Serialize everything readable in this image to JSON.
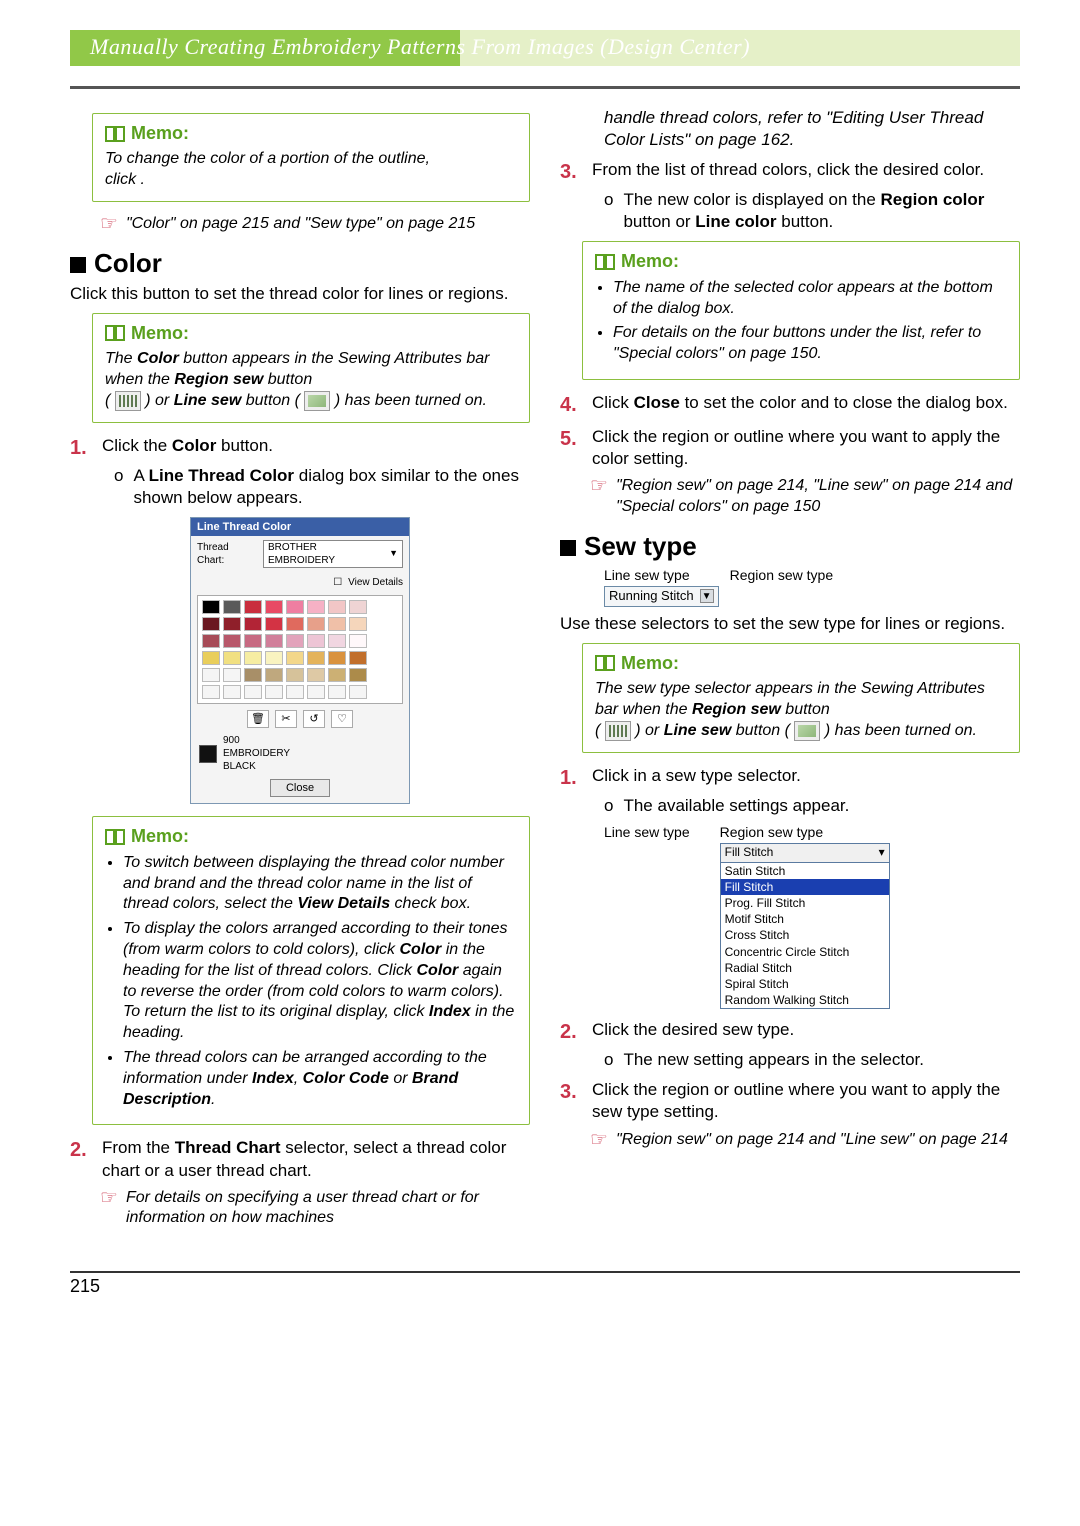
{
  "header": {
    "title": "Manually Creating Embroidery Patterns From Images (Design Center)"
  },
  "memo_label": "Memo:",
  "left": {
    "memo1": {
      "line1": "To change the color of a portion of the outline,",
      "line2": "click          ."
    },
    "xref1": "\"Color\" on page 215 and \"Sew type\" on page 215",
    "section_color": "Color",
    "color_intro": "Click this button to set the thread color for lines or regions.",
    "memo2_a": "The ",
    "memo2_b": "Color",
    "memo2_c": " button appears in the Sewing Attributes bar when the ",
    "memo2_d": "Region sew",
    "memo2_e": " button",
    "memo2_f": "(",
    "memo2_g": ") or ",
    "memo2_h": "Line sew",
    "memo2_i": " button (",
    "memo2_j": ") has been turned on.",
    "step1_a": "Click the ",
    "step1_b": "Color",
    "step1_c": " button.",
    "sub1_a": "A ",
    "sub1_b": "Line Thread Color",
    "sub1_c": " dialog box similar to the ones shown below appears.",
    "dialog": {
      "title": "Line Thread Color",
      "chart_label": "Thread Chart:",
      "chart_value": "BROTHER EMBROIDERY",
      "view_details": "View Details",
      "swatches": [
        "#000000",
        "#5a5a5a",
        "#c92e3e",
        "#e84a64",
        "#ef7ea1",
        "#f6b1c5",
        "#f2c6c6",
        "#efd4d4",
        "#6a1720",
        "#8f1f2a",
        "#b22436",
        "#d33344",
        "#e06a5e",
        "#e7a08a",
        "#f0c0a8",
        "#f5d6bb",
        "#a74b57",
        "#b8586a",
        "#c76a82",
        "#d17f9a",
        "#e2a3bb",
        "#edc5d5",
        "#f1d6e1",
        "#fff8fa",
        "#e9ce5b",
        "#f1e081",
        "#f6eda2",
        "#f9f3c0",
        "#f3d78a",
        "#e4b35b",
        "#d9923e",
        "#c16f2c",
        "#f5f5f5",
        "#f5f5f5",
        "#a88f68",
        "#bfa87e",
        "#d6c29a",
        "#dec9a5",
        "#ccb074",
        "#ac8b4a",
        "#f5f5f5",
        "#f5f5f5",
        "#f5f5f5",
        "#f5f5f5",
        "#f5f5f5",
        "#f5f5f5",
        "#f5f5f5",
        "#f5f5f5"
      ],
      "tool_icons": [
        "🗑",
        "✂",
        "↺",
        "♡"
      ],
      "info1": "900",
      "info2": "EMBROIDERY",
      "info3": "BLACK",
      "close": "Close"
    },
    "memo3": {
      "b1a": "To switch between displaying the thread color number and brand and the thread color name in the list of thread colors, select the ",
      "b1b": "View Details",
      "b1c": " check box.",
      "b2a": "To display the colors arranged according to their tones (from warm colors to cold colors), click ",
      "b2b": "Color",
      "b2c": " in the heading for the list of thread colors. Click ",
      "b2d": "Color",
      "b2e": " again to reverse the order (from cold colors to warm colors). To return the list to its original display, click ",
      "b2f": "Index",
      "b2g": " in the heading.",
      "b3a": "The thread colors can be arranged according to the information under ",
      "b3b": "Index",
      "b3c": ", ",
      "b3d": "Color Code",
      "b3e": " or ",
      "b3f": "Brand Description",
      "b3g": "."
    },
    "step2_a": "From the ",
    "step2_b": "Thread Chart",
    "step2_c": " selector, select a thread color chart or a user thread chart.",
    "xref2": "For details on specifying a user thread chart or for information on how machines"
  },
  "right": {
    "cont": "handle thread colors, refer to \"Editing User Thread Color Lists\" on page 162.",
    "step3": "From the list of thread colors, click the desired color.",
    "sub3_a": "The new color is displayed on the ",
    "sub3_b": "Region color",
    "sub3_c": " button or ",
    "sub3_d": "Line color",
    "sub3_e": " button.",
    "memo4": {
      "b1": "The name of the selected color appears at the bottom of the dialog box.",
      "b2": "For details on the four buttons under the list, refer to \"Special colors\" on page 150."
    },
    "step4_a": "Click ",
    "step4_b": "Close",
    "step4_c": " to set the color and to close the dialog box.",
    "step5": "Click the region or outline where you want to apply the color setting.",
    "xref3": "\"Region sew\" on page 214, \"Line sew\" on page 214 and \"Special colors\" on page 150",
    "section_sew": "Sew type",
    "sew_labels": {
      "line": "Line sew type",
      "region": "Region sew type"
    },
    "running_stitch": "Running Stitch",
    "sew_intro": "Use these selectors to set the sew type for lines or regions.",
    "memo5_a": "The sew type selector appears in the Sewing Attributes bar when the ",
    "memo5_b": "Region sew",
    "memo5_c": " button",
    "memo5_d": "(",
    "memo5_e": ") or ",
    "memo5_f": "Line sew",
    "memo5_g": " button (",
    "memo5_h": ") has been turned on.",
    "sstep1": "Click in a sew type selector.",
    "ssub1": "The available settings appear.",
    "sew_list": {
      "top": "Fill Stitch",
      "items": [
        "Satin Stitch",
        "Fill Stitch",
        "Prog. Fill Stitch",
        "Motif Stitch",
        "Cross Stitch",
        "Concentric Circle Stitch",
        "Radial Stitch",
        "Spiral Stitch",
        "Random Walking Stitch"
      ],
      "selected_index": 1
    },
    "sstep2": "Click the desired sew type.",
    "ssub2": "The new setting appears in the selector.",
    "sstep3": "Click the region or outline where you want to apply the sew type setting.",
    "xref4": "\"Region sew\" on page 214 and \"Line sew\" on page 214"
  },
  "page_number": "215"
}
